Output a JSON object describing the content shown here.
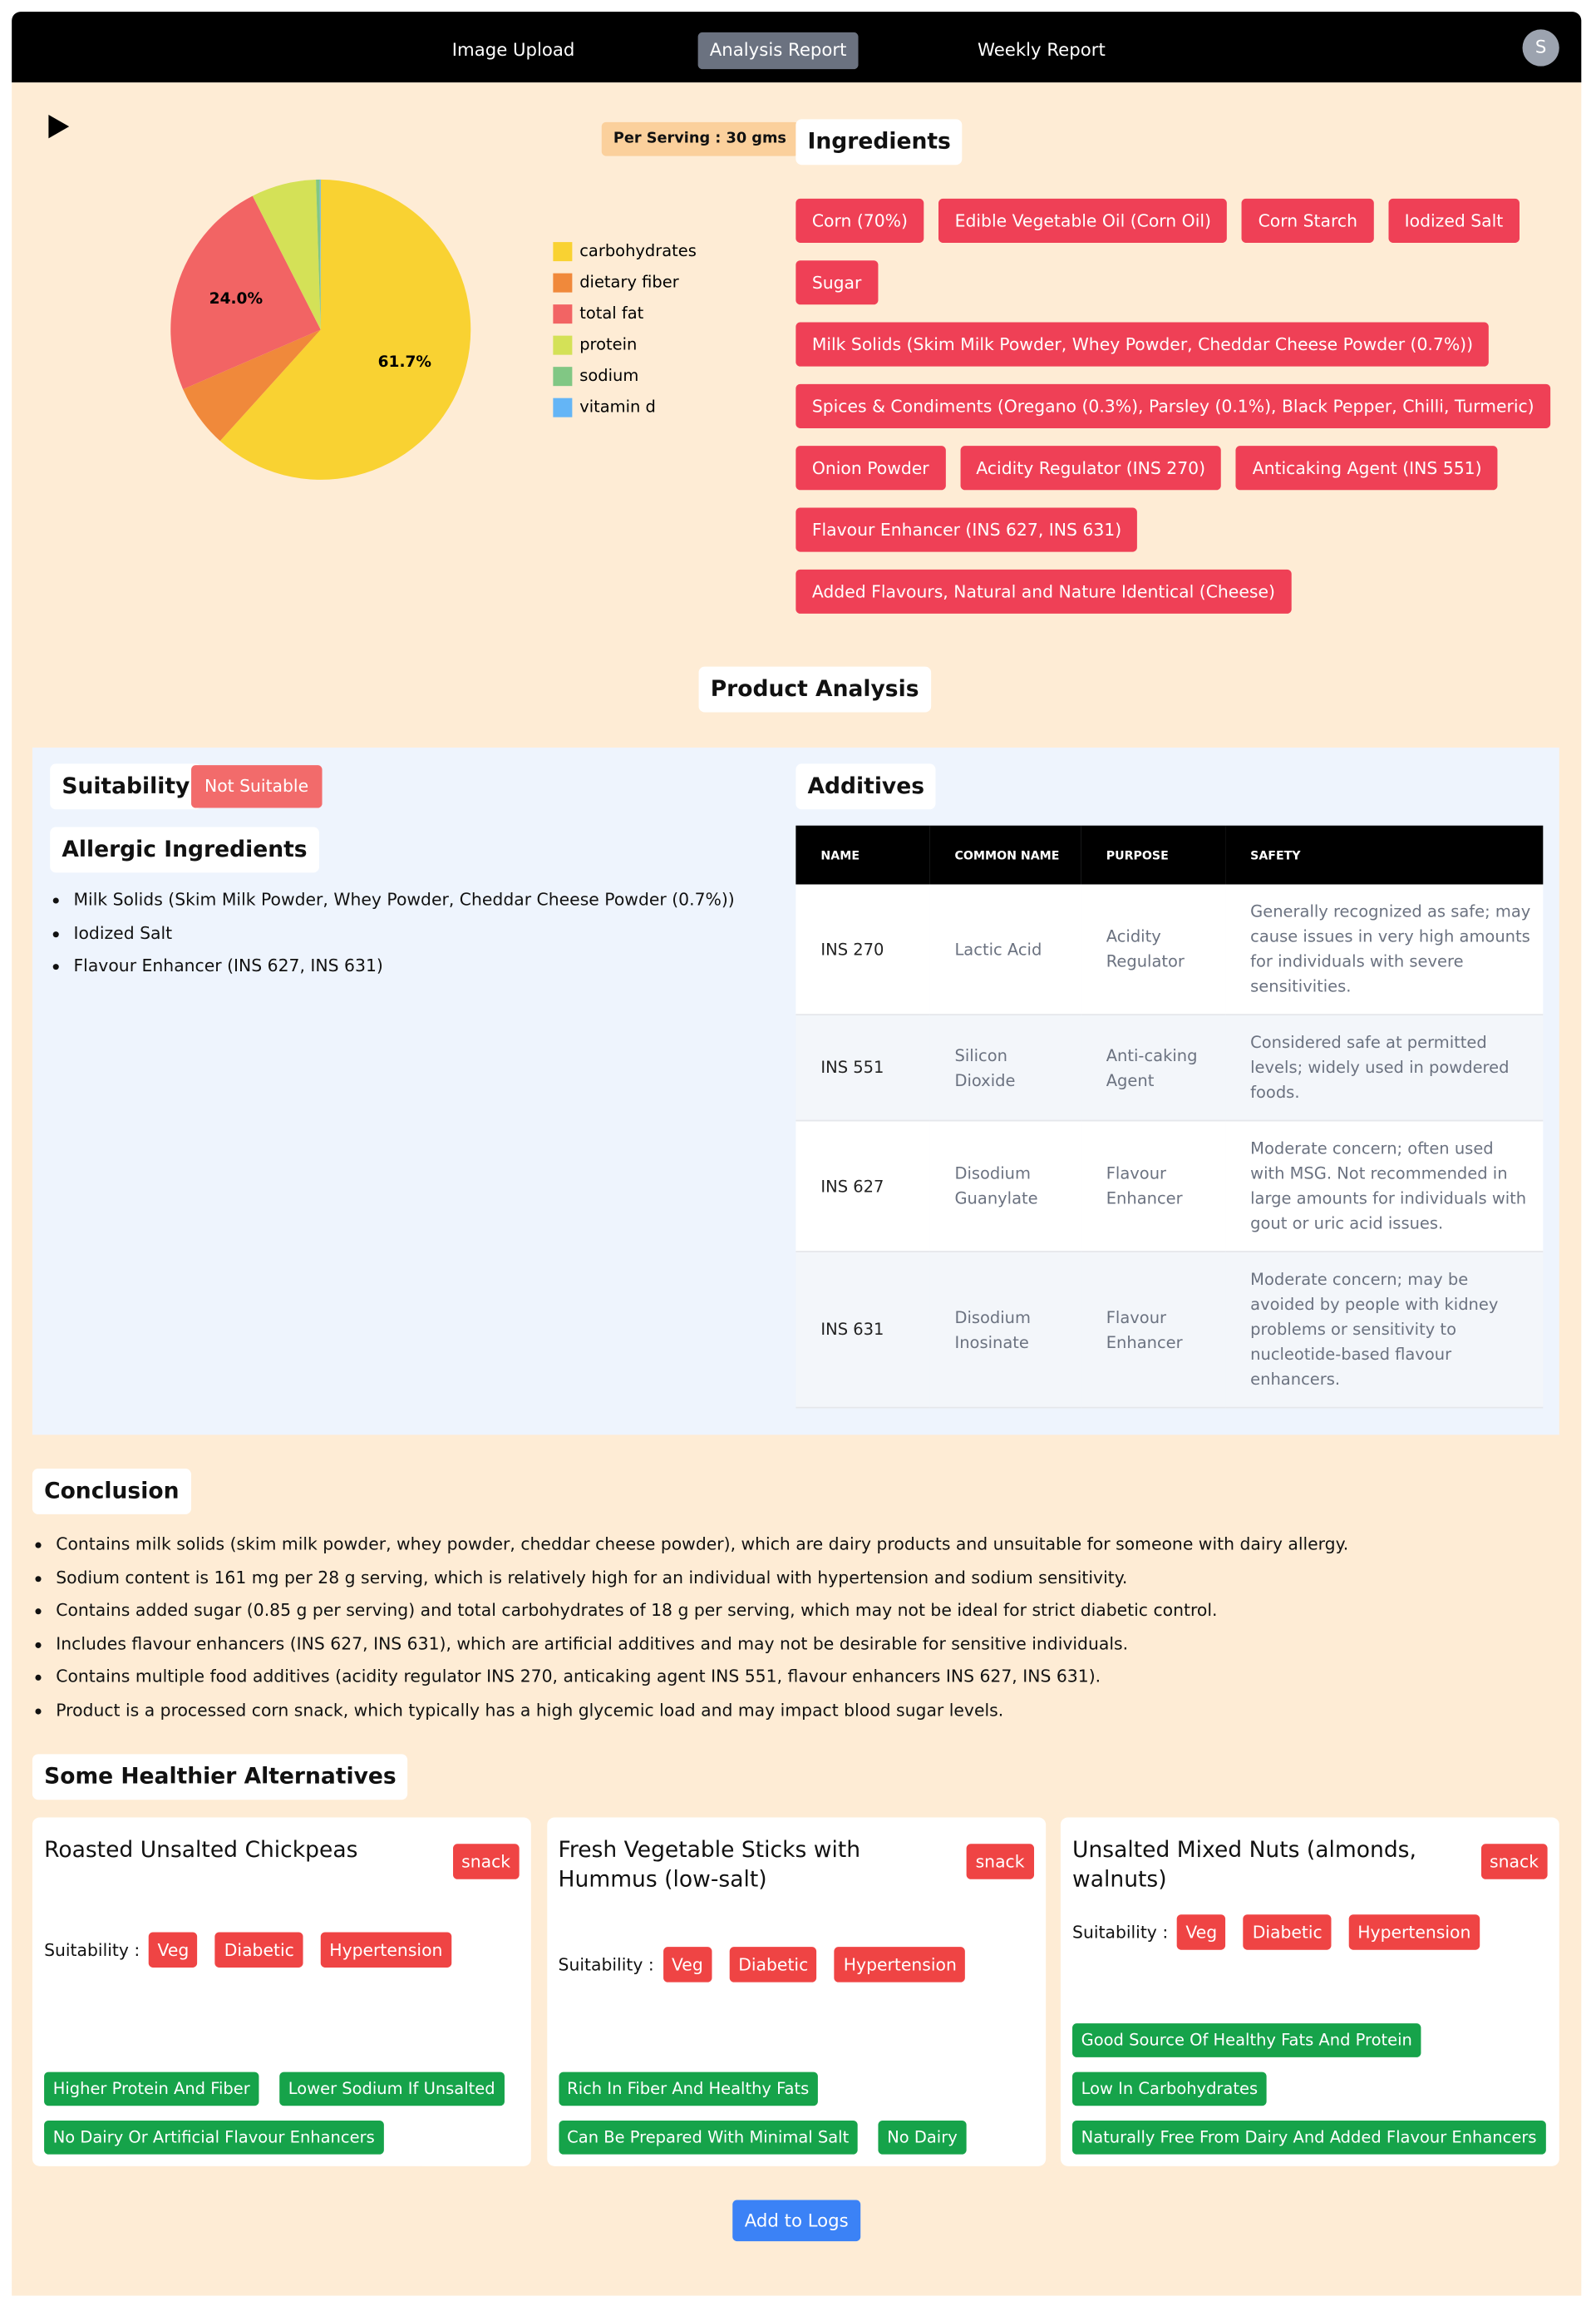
{
  "nav": {
    "items": [
      "Image Upload",
      "Analysis Report",
      "Weekly Report"
    ],
    "avatar": "S"
  },
  "serving": "Per Serving : 30 gms",
  "chart_data": {
    "type": "pie",
    "categories": [
      "carbohydrates",
      "dietary fiber",
      "total fat",
      "protein",
      "sodium",
      "vitamin d"
    ],
    "values": [
      61.7,
      6.8,
      24.0,
      7.0,
      0.4,
      0.1
    ],
    "value_labels": [
      "61.7%",
      null,
      "24.0%",
      null,
      null,
      null
    ],
    "colors": [
      "#f9d232",
      "#f0893b",
      "#f26464",
      "#d4e157",
      "#81c784",
      "#64b5f6"
    ]
  },
  "ingredients": {
    "title": "Ingredients",
    "items": [
      "Corn (70%)",
      "Edible Vegetable Oil (Corn Oil)",
      "Corn Starch",
      "Iodized Salt",
      "Sugar",
      "Milk Solids (Skim Milk Powder, Whey Powder, Cheddar Cheese Powder (0.7%))",
      "Spices & Condiments (Oregano (0.3%), Parsley (0.1%), Black Pepper, Chilli, Turmeric)",
      "Onion Powder",
      "Acidity Regulator (INS 270)",
      "Anticaking Agent (INS 551)",
      "Flavour Enhancer (INS 627, INS 631)",
      "Added Flavours, Natural and Nature Identical (Cheese)"
    ]
  },
  "product_analysis": {
    "title": "Product Analysis",
    "suitability": {
      "title": "Suitability",
      "status": "Not Suitable"
    },
    "allergic": {
      "title": "Allergic Ingredients",
      "items": [
        "Milk Solids (Skim Milk Powder, Whey Powder, Cheddar Cheese Powder (0.7%))",
        "Iodized Salt",
        "Flavour Enhancer (INS 627, INS 631)"
      ]
    },
    "additives": {
      "title": "Additives",
      "columns": [
        "NAME",
        "COMMON NAME",
        "PURPOSE",
        "SAFETY"
      ],
      "rows": [
        [
          "INS 270",
          "Lactic Acid",
          "Acidity Regulator",
          "Generally recognized as safe; may cause issues in very high amounts for individuals with severe sensitivities."
        ],
        [
          "INS 551",
          "Silicon Dioxide",
          "Anti-caking Agent",
          "Considered safe at permitted levels; widely used in powdered foods."
        ],
        [
          "INS 627",
          "Disodium Guanylate",
          "Flavour Enhancer",
          "Moderate concern; often used with MSG. Not recommended in large amounts for individuals with gout or uric acid issues."
        ],
        [
          "INS 631",
          "Disodium Inosinate",
          "Flavour Enhancer",
          "Moderate concern; may be avoided by people with kidney problems or sensitivity to nucleotide-based flavour enhancers."
        ]
      ]
    }
  },
  "conclusion": {
    "title": "Conclusion",
    "items": [
      "Contains milk solids (skim milk powder, whey powder, cheddar cheese powder), which are dairy products and unsuitable for someone with dairy allergy.",
      "Sodium content is 161 mg per 28 g serving, which is relatively high for an individual with hypertension and sodium sensitivity.",
      "Contains added sugar (0.85 g per serving) and total carbohydrates of 18 g per serving, which may not be ideal for strict diabetic control.",
      "Includes flavour enhancers (INS 627, INS 631), which are artificial additives and may not be desirable for sensitive individuals.",
      "Contains multiple food additives (acidity regulator INS 270, anticaking agent INS 551, flavour enhancers INS 627, INS 631).",
      "Product is a processed corn snack, which typically has a high glycemic load and may impact blood sugar levels."
    ]
  },
  "alternatives": {
    "title": "Some Healthier Alternatives",
    "suitability_label": "Suitability :",
    "cards": [
      {
        "name": "Roasted Unsalted Chickpeas",
        "tag": "snack",
        "suitability": [
          "Veg",
          "Diabetic",
          "Hypertension"
        ],
        "benefits": [
          "Higher Protein And Fiber",
          "Lower Sodium If Unsalted",
          "No Dairy Or Artificial Flavour Enhancers"
        ]
      },
      {
        "name": "Fresh Vegetable Sticks with Hummus (low-salt)",
        "tag": "snack",
        "suitability": [
          "Veg",
          "Diabetic",
          "Hypertension"
        ],
        "benefits": [
          "Rich In Fiber And Healthy Fats",
          "Can Be Prepared With Minimal Salt",
          "No Dairy"
        ]
      },
      {
        "name": "Unsalted Mixed Nuts (almonds, walnuts)",
        "tag": "snack",
        "suitability": [
          "Veg",
          "Diabetic",
          "Hypertension"
        ],
        "benefits": [
          "Good Source Of Healthy Fats And Protein",
          "Low In Carbohydrates",
          "Naturally Free From Dairy And Added Flavour Enhancers"
        ]
      }
    ]
  },
  "button": "Add to Logs"
}
